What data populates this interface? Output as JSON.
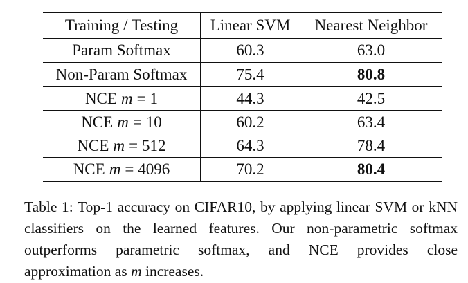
{
  "table": {
    "header": [
      "Training / Testing",
      "Linear SVM",
      "Nearest Neighbor"
    ],
    "rows": [
      {
        "label": {
          "text": "Param Softmax"
        },
        "cells": [
          "60.3",
          "63.0"
        ],
        "bold": []
      },
      {
        "label": {
          "text": "Non-Param Softmax"
        },
        "cells": [
          "75.4",
          "80.8"
        ],
        "bold": [
          1
        ]
      },
      {
        "label": {
          "text": "NCE",
          "var": "m",
          "op": "=",
          "num": "1"
        },
        "cells": [
          "44.3",
          "42.5"
        ],
        "bold": []
      },
      {
        "label": {
          "text": "NCE",
          "var": "m",
          "op": "=",
          "num": "10"
        },
        "cells": [
          "60.2",
          "63.4"
        ],
        "bold": []
      },
      {
        "label": {
          "text": "NCE",
          "var": "m",
          "op": "=",
          "num": "512"
        },
        "cells": [
          "64.3",
          "78.4"
        ],
        "bold": []
      },
      {
        "label": {
          "text": "NCE",
          "var": "m",
          "op": "=",
          "num": "4096"
        },
        "cells": [
          "70.2",
          "80.4"
        ],
        "bold": [
          1
        ]
      }
    ]
  },
  "caption": {
    "label": "Table 1:",
    "text": "Top-1 accuracy on CIFAR10, by applying linear SVM or kNN classifiers on the learned features. Our non-parametric softmax outperforms parametric softmax, and NCE provides close approximation as",
    "var": "m",
    "end": "increases."
  }
}
